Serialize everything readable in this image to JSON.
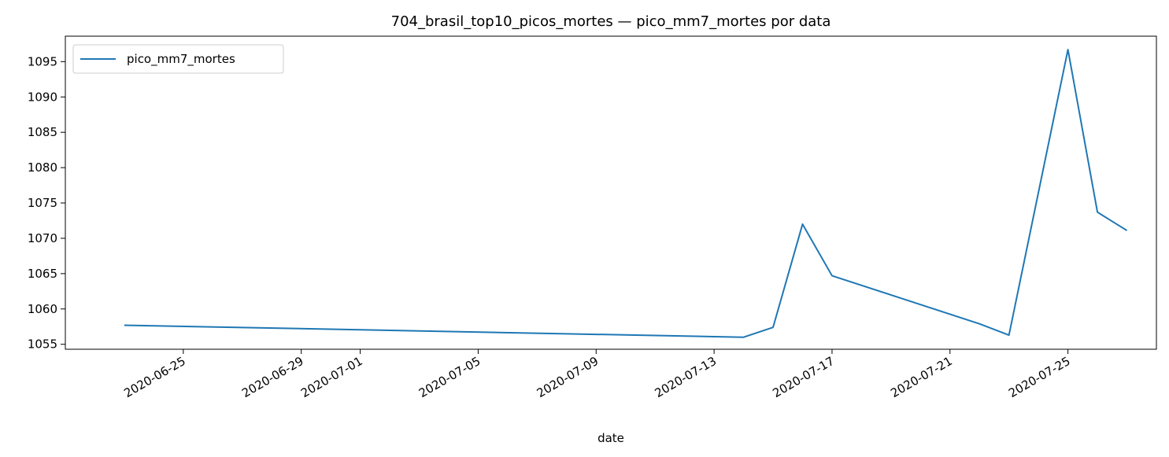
{
  "chart_data": {
    "type": "line",
    "title": "704_brasil_top10_picos_mortes — pico_mm7_mortes por data",
    "xlabel": "date",
    "ylabel": "",
    "x_type": "date",
    "xlim": [
      "2020-06-21",
      "2020-07-28"
    ],
    "ylim": [
      1054.3,
      1098.6
    ],
    "yticks": [
      1055,
      1060,
      1065,
      1070,
      1075,
      1080,
      1085,
      1090,
      1095
    ],
    "xticks": [
      "2020-06-25",
      "2020-06-29",
      "2020-07-01",
      "2020-07-05",
      "2020-07-09",
      "2020-07-13",
      "2020-07-17",
      "2020-07-21",
      "2020-07-25"
    ],
    "grid": false,
    "legend_position": "upper left",
    "series": [
      {
        "name": "pico_mm7_mortes",
        "color": "#1f77b4",
        "points": [
          {
            "x": "2020-06-23",
            "y": 1057.7
          },
          {
            "x": "2020-07-14",
            "y": 1056.0
          },
          {
            "x": "2020-07-15",
            "y": 1057.4
          },
          {
            "x": "2020-07-16",
            "y": 1072.0
          },
          {
            "x": "2020-07-17",
            "y": 1064.7
          },
          {
            "x": "2020-07-22",
            "y": 1057.9
          },
          {
            "x": "2020-07-23",
            "y": 1056.3
          },
          {
            "x": "2020-07-25",
            "y": 1096.7
          },
          {
            "x": "2020-07-26",
            "y": 1073.7
          },
          {
            "x": "2020-07-27",
            "y": 1071.1
          }
        ]
      }
    ]
  }
}
